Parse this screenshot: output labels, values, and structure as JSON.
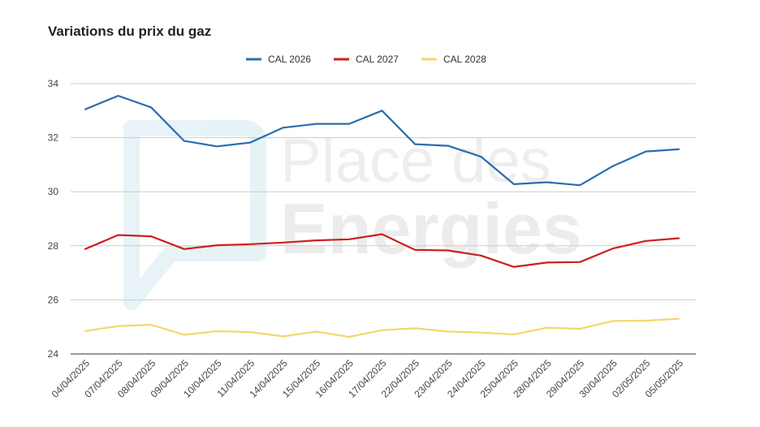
{
  "chart_data": {
    "type": "line",
    "title": "Variations du prix du gaz",
    "xlabel": "",
    "ylabel": "",
    "ylim": [
      24,
      34
    ],
    "yticks": [
      24,
      26,
      28,
      30,
      32,
      34
    ],
    "grid": true,
    "legend_position": "top-center",
    "categories": [
      "04/04/2025",
      "07/04/2025",
      "08/04/2025",
      "09/04/2025",
      "10/04/2025",
      "11/04/2025",
      "14/04/2025",
      "15/04/2025",
      "16/04/2025",
      "17/04/2025",
      "22/04/2025",
      "23/04/2025",
      "24/04/2025",
      "25/04/2025",
      "28/04/2025",
      "29/04/2025",
      "30/04/2025",
      "02/05/2025",
      "05/05/2025"
    ],
    "series": [
      {
        "name": "CAL 2026",
        "color": "#2b6cb0",
        "values": [
          33.05,
          33.55,
          33.12,
          31.88,
          31.68,
          31.82,
          32.37,
          32.51,
          32.51,
          33.0,
          31.76,
          31.7,
          31.3,
          30.28,
          30.35,
          30.24,
          30.95,
          31.49,
          31.57
        ]
      },
      {
        "name": "CAL 2027",
        "color": "#cc1f1f",
        "values": [
          27.88,
          28.4,
          28.35,
          27.88,
          28.02,
          28.06,
          28.12,
          28.2,
          28.24,
          28.43,
          27.85,
          27.83,
          27.64,
          27.22,
          27.38,
          27.4,
          27.9,
          28.18,
          28.28
        ]
      },
      {
        "name": "CAL 2028",
        "color": "#f6d66b",
        "values": [
          24.85,
          25.03,
          25.08,
          24.71,
          24.84,
          24.81,
          24.65,
          24.83,
          24.63,
          24.88,
          24.95,
          24.83,
          24.79,
          24.72,
          24.97,
          24.93,
          25.22,
          25.23,
          25.3
        ]
      }
    ]
  },
  "watermark": {
    "line1": "Place des",
    "line2": "Energies"
  }
}
